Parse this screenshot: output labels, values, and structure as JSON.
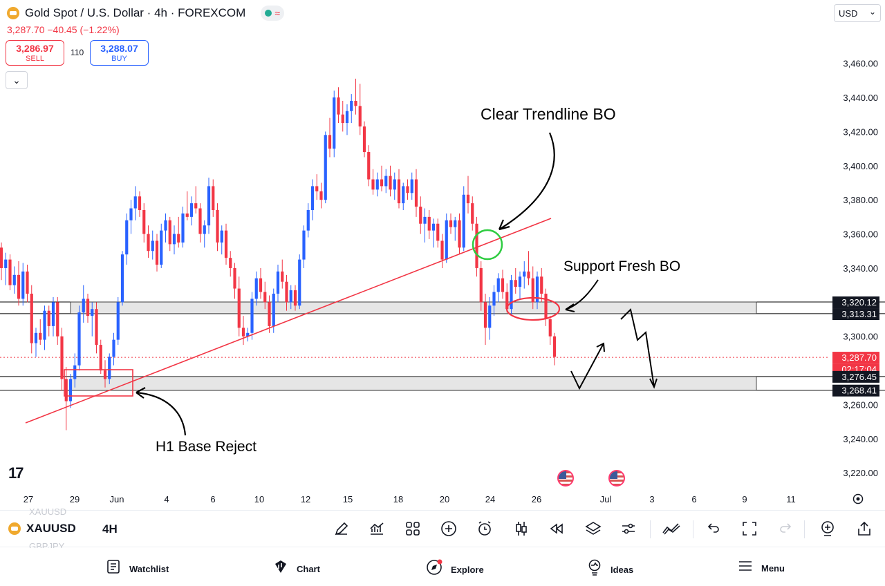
{
  "header": {
    "symbol_title": "Gold Spot / U.S. Dollar · 4h · FOREXCOM",
    "wave_icon": "≈",
    "price_change": "3,287.70  −40.45 (−1.22%)",
    "sell_price": "3,286.97",
    "sell_label": "SELL",
    "spread": "110",
    "buy_price": "3,288.07",
    "buy_label": "BUY",
    "collapse_icon": "⌄"
  },
  "currency": {
    "value": "USD",
    "chevron": "⌄"
  },
  "price_axis": {
    "ticks": [
      "3,460.00",
      "3,440.00",
      "3,420.00",
      "3,400.00",
      "3,380.00",
      "3,360.00",
      "3,340.00",
      "3,300.00",
      "3,260.00",
      "3,240.00",
      "3,220.00"
    ],
    "labels": [
      {
        "text": "3,320.12",
        "style": "dark"
      },
      {
        "text": "3,313.31",
        "style": "dark"
      },
      {
        "text": "3,287.70",
        "style": "red"
      },
      {
        "text": "02:17:04",
        "style": "red"
      },
      {
        "text": "3,276.45",
        "style": "dark"
      },
      {
        "text": "3,268.41",
        "style": "dark"
      }
    ]
  },
  "time_axis": {
    "ticks": [
      "27",
      "29",
      "Jun",
      "4",
      "6",
      "10",
      "12",
      "15",
      "18",
      "20",
      "24",
      "26",
      "Jul",
      "3",
      "6",
      "9",
      "11"
    ]
  },
  "annotations": {
    "trendline_bo": "Clear Trendline BO",
    "support_bo": "Support Fresh BO",
    "base_reject": "H1 Base Reject"
  },
  "tv_logo": "17",
  "toolbar": {
    "symbol": "XAUUSD",
    "timeframe": "4H",
    "ghost_above": "XAUUSD",
    "ghost_below": "GBPJPY",
    "tools": [
      "pencil-icon",
      "indicators-icon",
      "layouts-icon",
      "add-icon",
      "alert-icon",
      "bar-style-icon",
      "replay-icon",
      "layers-icon",
      "settings-icon",
      "trend-icon",
      "undo-icon",
      "fullscreen-icon",
      "redo-icon",
      "compare-icon",
      "share-icon"
    ]
  },
  "nav": {
    "watchlist": "Watchlist",
    "chart": "Chart",
    "explore": "Explore",
    "ideas": "Ideas",
    "menu": "Menu"
  },
  "colors": {
    "up": "#2962ff",
    "down": "#f23645",
    "trendline": "#f23645",
    "zone": "#e6e6e6"
  },
  "chart_data": {
    "type": "candlestick",
    "symbol": "XAUUSD",
    "interval": "4h",
    "ylim": [
      3212,
      3472
    ],
    "last_price": 3287.7,
    "support_zone_upper": [
      3313.31,
      3320.12
    ],
    "support_zone_lower": [
      3268.41,
      3276.45
    ],
    "candles": [
      {
        "o": 3352,
        "h": 3355,
        "l": 3333,
        "c": 3340
      },
      {
        "o": 3340,
        "h": 3349,
        "l": 3330,
        "c": 3345
      },
      {
        "o": 3345,
        "h": 3348,
        "l": 3327,
        "c": 3330
      },
      {
        "o": 3330,
        "h": 3341,
        "l": 3325,
        "c": 3336
      },
      {
        "o": 3336,
        "h": 3344,
        "l": 3318,
        "c": 3322
      },
      {
        "o": 3322,
        "h": 3343,
        "l": 3318,
        "c": 3338
      },
      {
        "o": 3338,
        "h": 3342,
        "l": 3320,
        "c": 3325
      },
      {
        "o": 3325,
        "h": 3330,
        "l": 3290,
        "c": 3296
      },
      {
        "o": 3296,
        "h": 3305,
        "l": 3288,
        "c": 3302
      },
      {
        "o": 3302,
        "h": 3310,
        "l": 3295,
        "c": 3298
      },
      {
        "o": 3298,
        "h": 3318,
        "l": 3292,
        "c": 3315
      },
      {
        "o": 3315,
        "h": 3318,
        "l": 3300,
        "c": 3306
      },
      {
        "o": 3306,
        "h": 3323,
        "l": 3300,
        "c": 3320
      },
      {
        "o": 3320,
        "h": 3323,
        "l": 3295,
        "c": 3300
      },
      {
        "o": 3300,
        "h": 3305,
        "l": 3268,
        "c": 3275
      },
      {
        "o": 3275,
        "h": 3282,
        "l": 3245,
        "c": 3262
      },
      {
        "o": 3262,
        "h": 3278,
        "l": 3258,
        "c": 3275
      },
      {
        "o": 3275,
        "h": 3290,
        "l": 3270,
        "c": 3283
      },
      {
        "o": 3283,
        "h": 3318,
        "l": 3280,
        "c": 3314
      },
      {
        "o": 3314,
        "h": 3330,
        "l": 3308,
        "c": 3322
      },
      {
        "o": 3322,
        "h": 3325,
        "l": 3308,
        "c": 3312
      },
      {
        "o": 3312,
        "h": 3320,
        "l": 3300,
        "c": 3316
      },
      {
        "o": 3316,
        "h": 3320,
        "l": 3290,
        "c": 3295
      },
      {
        "o": 3295,
        "h": 3298,
        "l": 3278,
        "c": 3280
      },
      {
        "o": 3280,
        "h": 3286,
        "l": 3270,
        "c": 3275
      },
      {
        "o": 3275,
        "h": 3290,
        "l": 3272,
        "c": 3288
      },
      {
        "o": 3288,
        "h": 3302,
        "l": 3283,
        "c": 3298
      },
      {
        "o": 3298,
        "h": 3323,
        "l": 3295,
        "c": 3320
      },
      {
        "o": 3320,
        "h": 3350,
        "l": 3318,
        "c": 3348
      },
      {
        "o": 3348,
        "h": 3372,
        "l": 3342,
        "c": 3368
      },
      {
        "o": 3368,
        "h": 3380,
        "l": 3360,
        "c": 3375
      },
      {
        "o": 3375,
        "h": 3388,
        "l": 3368,
        "c": 3382
      },
      {
        "o": 3382,
        "h": 3385,
        "l": 3370,
        "c": 3374
      },
      {
        "o": 3374,
        "h": 3378,
        "l": 3355,
        "c": 3360
      },
      {
        "o": 3360,
        "h": 3365,
        "l": 3346,
        "c": 3350
      },
      {
        "o": 3350,
        "h": 3362,
        "l": 3345,
        "c": 3356
      },
      {
        "o": 3356,
        "h": 3360,
        "l": 3338,
        "c": 3342
      },
      {
        "o": 3342,
        "h": 3366,
        "l": 3340,
        "c": 3362
      },
      {
        "o": 3362,
        "h": 3372,
        "l": 3355,
        "c": 3368
      },
      {
        "o": 3368,
        "h": 3370,
        "l": 3350,
        "c": 3354
      },
      {
        "o": 3354,
        "h": 3365,
        "l": 3348,
        "c": 3360
      },
      {
        "o": 3360,
        "h": 3370,
        "l": 3352,
        "c": 3355
      },
      {
        "o": 3355,
        "h": 3376,
        "l": 3352,
        "c": 3372
      },
      {
        "o": 3372,
        "h": 3385,
        "l": 3368,
        "c": 3370
      },
      {
        "o": 3370,
        "h": 3382,
        "l": 3365,
        "c": 3378
      },
      {
        "o": 3378,
        "h": 3388,
        "l": 3372,
        "c": 3375
      },
      {
        "o": 3375,
        "h": 3378,
        "l": 3355,
        "c": 3360
      },
      {
        "o": 3360,
        "h": 3368,
        "l": 3352,
        "c": 3365
      },
      {
        "o": 3365,
        "h": 3393,
        "l": 3360,
        "c": 3388
      },
      {
        "o": 3388,
        "h": 3392,
        "l": 3370,
        "c": 3374
      },
      {
        "o": 3374,
        "h": 3378,
        "l": 3350,
        "c": 3355
      },
      {
        "o": 3355,
        "h": 3365,
        "l": 3348,
        "c": 3362
      },
      {
        "o": 3362,
        "h": 3366,
        "l": 3342,
        "c": 3346
      },
      {
        "o": 3346,
        "h": 3350,
        "l": 3335,
        "c": 3340
      },
      {
        "o": 3340,
        "h": 3343,
        "l": 3322,
        "c": 3328
      },
      {
        "o": 3328,
        "h": 3335,
        "l": 3300,
        "c": 3305
      },
      {
        "o": 3305,
        "h": 3312,
        "l": 3295,
        "c": 3300
      },
      {
        "o": 3300,
        "h": 3305,
        "l": 3297,
        "c": 3302
      },
      {
        "o": 3302,
        "h": 3326,
        "l": 3298,
        "c": 3322
      },
      {
        "o": 3322,
        "h": 3338,
        "l": 3318,
        "c": 3334
      },
      {
        "o": 3334,
        "h": 3340,
        "l": 3322,
        "c": 3326
      },
      {
        "o": 3326,
        "h": 3332,
        "l": 3316,
        "c": 3320
      },
      {
        "o": 3320,
        "h": 3324,
        "l": 3302,
        "c": 3306
      },
      {
        "o": 3306,
        "h": 3328,
        "l": 3302,
        "c": 3325
      },
      {
        "o": 3325,
        "h": 3342,
        "l": 3320,
        "c": 3338
      },
      {
        "o": 3338,
        "h": 3345,
        "l": 3328,
        "c": 3332
      },
      {
        "o": 3332,
        "h": 3336,
        "l": 3315,
        "c": 3320
      },
      {
        "o": 3320,
        "h": 3330,
        "l": 3316,
        "c": 3327
      },
      {
        "o": 3327,
        "h": 3330,
        "l": 3315,
        "c": 3318
      },
      {
        "o": 3318,
        "h": 3348,
        "l": 3316,
        "c": 3345
      },
      {
        "o": 3345,
        "h": 3365,
        "l": 3340,
        "c": 3362
      },
      {
        "o": 3362,
        "h": 3378,
        "l": 3358,
        "c": 3374
      },
      {
        "o": 3374,
        "h": 3392,
        "l": 3368,
        "c": 3388
      },
      {
        "o": 3388,
        "h": 3395,
        "l": 3380,
        "c": 3385
      },
      {
        "o": 3385,
        "h": 3390,
        "l": 3375,
        "c": 3380
      },
      {
        "o": 3380,
        "h": 3420,
        "l": 3378,
        "c": 3418
      },
      {
        "o": 3418,
        "h": 3428,
        "l": 3405,
        "c": 3410
      },
      {
        "o": 3410,
        "h": 3444,
        "l": 3405,
        "c": 3440
      },
      {
        "o": 3440,
        "h": 3446,
        "l": 3425,
        "c": 3430
      },
      {
        "o": 3430,
        "h": 3438,
        "l": 3420,
        "c": 3425
      },
      {
        "o": 3425,
        "h": 3436,
        "l": 3418,
        "c": 3432
      },
      {
        "o": 3432,
        "h": 3442,
        "l": 3425,
        "c": 3438
      },
      {
        "o": 3438,
        "h": 3451,
        "l": 3430,
        "c": 3435
      },
      {
        "o": 3435,
        "h": 3448,
        "l": 3418,
        "c": 3423
      },
      {
        "o": 3423,
        "h": 3426,
        "l": 3405,
        "c": 3408
      },
      {
        "o": 3408,
        "h": 3412,
        "l": 3388,
        "c": 3392
      },
      {
        "o": 3392,
        "h": 3398,
        "l": 3383,
        "c": 3386
      },
      {
        "o": 3386,
        "h": 3396,
        "l": 3382,
        "c": 3392
      },
      {
        "o": 3392,
        "h": 3400,
        "l": 3385,
        "c": 3388
      },
      {
        "o": 3388,
        "h": 3398,
        "l": 3384,
        "c": 3394
      },
      {
        "o": 3394,
        "h": 3400,
        "l": 3382,
        "c": 3386
      },
      {
        "o": 3386,
        "h": 3396,
        "l": 3380,
        "c": 3392
      },
      {
        "o": 3392,
        "h": 3398,
        "l": 3375,
        "c": 3378
      },
      {
        "o": 3378,
        "h": 3390,
        "l": 3374,
        "c": 3388
      },
      {
        "o": 3388,
        "h": 3392,
        "l": 3380,
        "c": 3384
      },
      {
        "o": 3384,
        "h": 3396,
        "l": 3380,
        "c": 3392
      },
      {
        "o": 3392,
        "h": 3398,
        "l": 3370,
        "c": 3376
      },
      {
        "o": 3376,
        "h": 3382,
        "l": 3360,
        "c": 3366
      },
      {
        "o": 3366,
        "h": 3375,
        "l": 3355,
        "c": 3370
      },
      {
        "o": 3370,
        "h": 3374,
        "l": 3357,
        "c": 3362
      },
      {
        "o": 3362,
        "h": 3369,
        "l": 3352,
        "c": 3366
      },
      {
        "o": 3366,
        "h": 3369,
        "l": 3352,
        "c": 3356
      },
      {
        "o": 3356,
        "h": 3360,
        "l": 3340,
        "c": 3345
      },
      {
        "o": 3345,
        "h": 3372,
        "l": 3343,
        "c": 3368
      },
      {
        "o": 3368,
        "h": 3372,
        "l": 3360,
        "c": 3364
      },
      {
        "o": 3364,
        "h": 3370,
        "l": 3356,
        "c": 3368
      },
      {
        "o": 3368,
        "h": 3372,
        "l": 3348,
        "c": 3352
      },
      {
        "o": 3352,
        "h": 3388,
        "l": 3350,
        "c": 3383
      },
      {
        "o": 3383,
        "h": 3394,
        "l": 3372,
        "c": 3378
      },
      {
        "o": 3378,
        "h": 3382,
        "l": 3362,
        "c": 3366
      },
      {
        "o": 3366,
        "h": 3370,
        "l": 3335,
        "c": 3340
      },
      {
        "o": 3340,
        "h": 3344,
        "l": 3315,
        "c": 3320
      },
      {
        "o": 3320,
        "h": 3325,
        "l": 3295,
        "c": 3305
      },
      {
        "o": 3305,
        "h": 3323,
        "l": 3298,
        "c": 3318
      },
      {
        "o": 3318,
        "h": 3330,
        "l": 3312,
        "c": 3326
      },
      {
        "o": 3326,
        "h": 3337,
        "l": 3320,
        "c": 3334
      },
      {
        "o": 3334,
        "h": 3339,
        "l": 3322,
        "c": 3326
      },
      {
        "o": 3326,
        "h": 3331,
        "l": 3314,
        "c": 3316
      },
      {
        "o": 3316,
        "h": 3336,
        "l": 3312,
        "c": 3333
      },
      {
        "o": 3333,
        "h": 3340,
        "l": 3325,
        "c": 3329
      },
      {
        "o": 3329,
        "h": 3338,
        "l": 3322,
        "c": 3335
      },
      {
        "o": 3335,
        "h": 3344,
        "l": 3328,
        "c": 3338
      },
      {
        "o": 3338,
        "h": 3350,
        "l": 3330,
        "c": 3334
      },
      {
        "o": 3334,
        "h": 3341,
        "l": 3316,
        "c": 3320
      },
      {
        "o": 3320,
        "h": 3338,
        "l": 3316,
        "c": 3335
      },
      {
        "o": 3335,
        "h": 3340,
        "l": 3320,
        "c": 3325
      },
      {
        "o": 3325,
        "h": 3328,
        "l": 3306,
        "c": 3310
      },
      {
        "o": 3310,
        "h": 3312,
        "l": 3295,
        "c": 3300
      },
      {
        "o": 3300,
        "h": 3302,
        "l": 3283,
        "c": 3288
      }
    ]
  }
}
